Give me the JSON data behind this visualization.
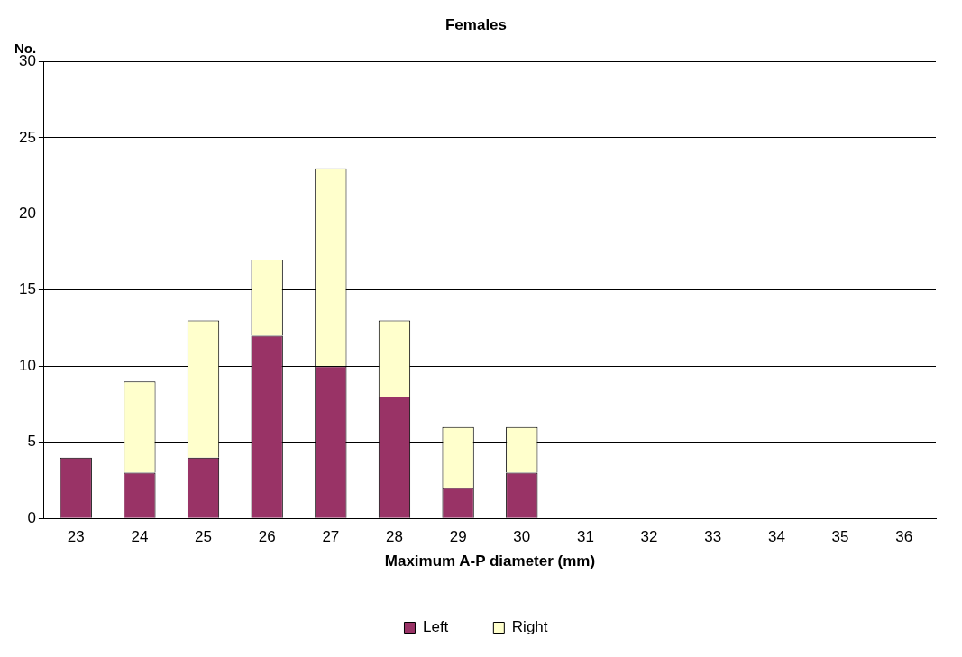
{
  "chart_data": {
    "type": "bar",
    "title": "Females",
    "xlabel": "Maximum A-P diameter (mm)",
    "ylabel": "No.",
    "categories": [
      "23",
      "24",
      "25",
      "26",
      "27",
      "28",
      "29",
      "30",
      "31",
      "32",
      "33",
      "34",
      "35",
      "36"
    ],
    "series": [
      {
        "name": "Left",
        "color": "#993366",
        "values": [
          4,
          3,
          4,
          12,
          10,
          8,
          2,
          3,
          null,
          null,
          null,
          null,
          null,
          null
        ]
      },
      {
        "name": "Right",
        "color": "#ffffcc",
        "values": [
          null,
          6,
          9,
          5,
          13,
          5,
          4,
          3,
          null,
          null,
          null,
          null,
          null,
          null
        ]
      }
    ],
    "stacked": true,
    "ylim": [
      0,
      30
    ],
    "yticks": [
      0,
      5,
      10,
      15,
      20,
      25,
      30
    ],
    "grid": "y",
    "legend": "bottom"
  }
}
